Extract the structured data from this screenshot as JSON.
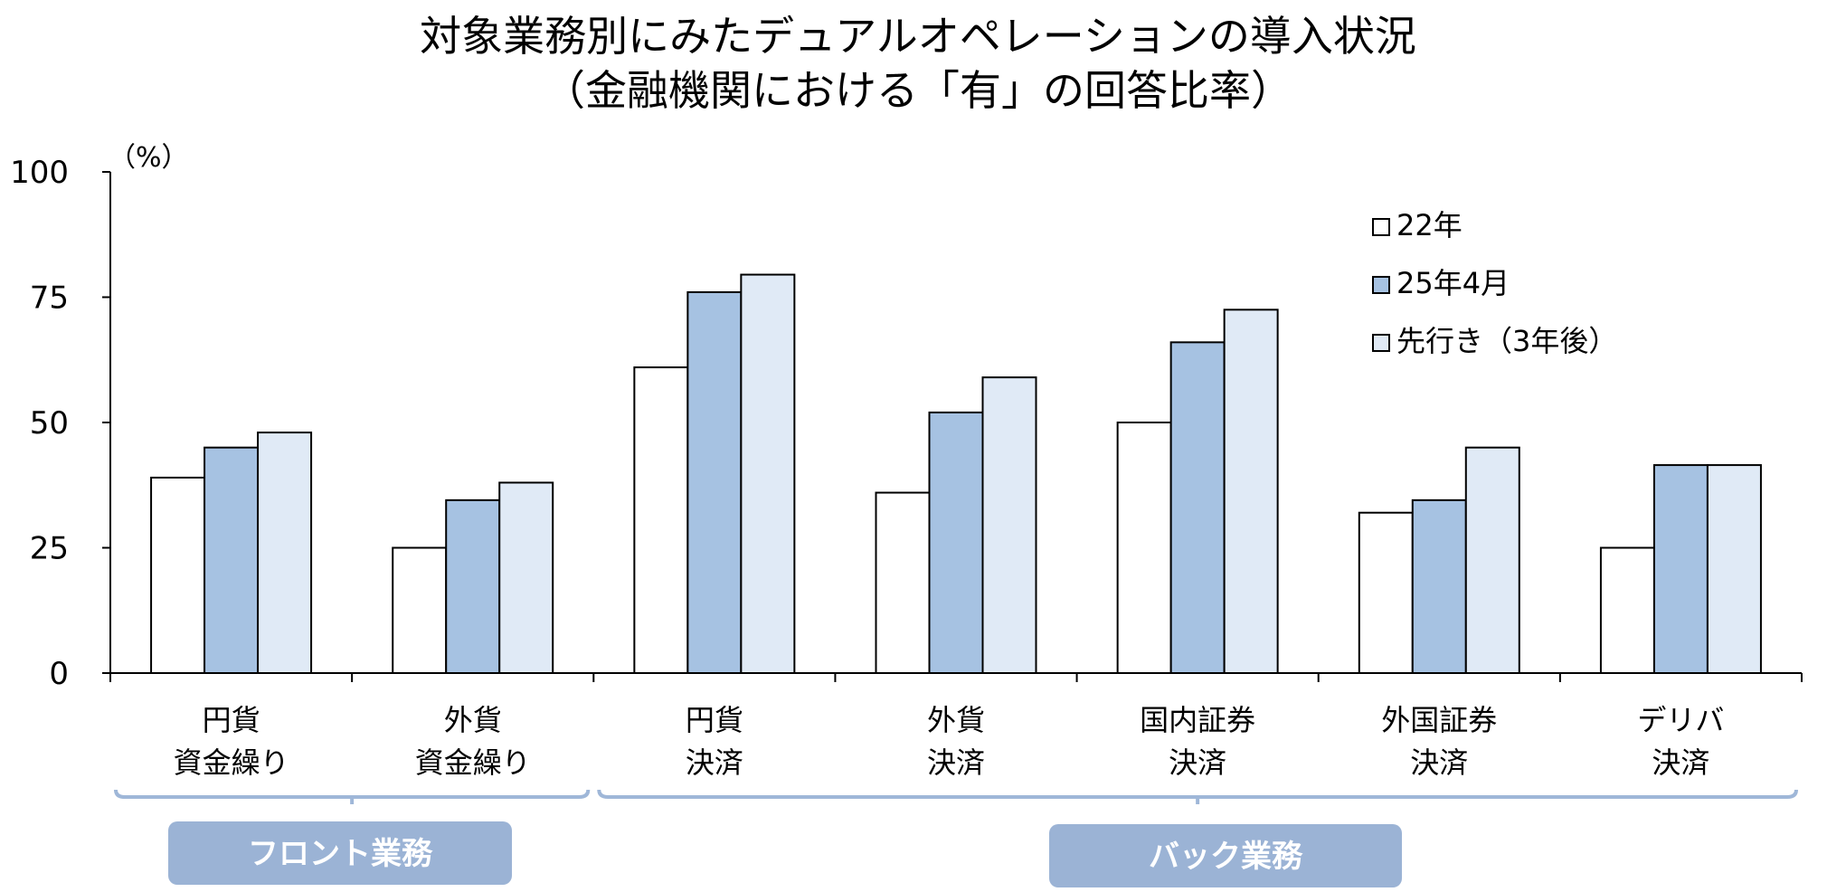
{
  "chart_data": {
    "type": "bar",
    "title": "対象業務別にみたデュアルオペレーションの導入状況",
    "subtitle": "（金融機関における「有」の回答比率）",
    "ylabel": "（%）",
    "ylim": [
      0,
      100
    ],
    "yticks": [
      "0",
      "25",
      "50",
      "75",
      "100"
    ],
    "categories": [
      [
        "円貨",
        "資金繰り"
      ],
      [
        "外貨",
        "資金繰り"
      ],
      [
        "円貨",
        "決済"
      ],
      [
        "外貨",
        "決済"
      ],
      [
        "国内証券",
        "決済"
      ],
      [
        "外国証券",
        "決済"
      ],
      [
        "デリバ",
        "決済"
      ]
    ],
    "series": [
      {
        "name": "22年",
        "color": "#ffffff",
        "values": [
          39,
          25,
          61,
          36,
          50,
          32,
          25
        ]
      },
      {
        "name": "25年4月",
        "color": "#a6c2e2",
        "values": [
          45,
          34.5,
          76,
          52,
          66,
          34.5,
          41.5
        ]
      },
      {
        "name": "先行き（3年後）",
        "color": "#e0eaf6",
        "values": [
          48,
          38,
          79.5,
          59,
          72.5,
          45,
          41.5
        ]
      }
    ],
    "groups": [
      {
        "label": "フロント業務",
        "categories": [
          0,
          1
        ]
      },
      {
        "label": "バック業務",
        "categories": [
          2,
          3,
          4,
          5,
          6
        ]
      }
    ],
    "grid": false,
    "legend": "top-right"
  }
}
